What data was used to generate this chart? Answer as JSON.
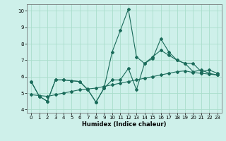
{
  "xlabel": "Humidex (Indice chaleur)",
  "bg_color": "#cef0ea",
  "grid_color": "#aaddcc",
  "line_color": "#1a6b5a",
  "xlim": [
    -0.5,
    23.5
  ],
  "ylim": [
    3.8,
    10.4
  ],
  "yticks": [
    4,
    5,
    6,
    7,
    8,
    9,
    10
  ],
  "xticks": [
    0,
    1,
    2,
    3,
    4,
    5,
    6,
    7,
    8,
    9,
    10,
    11,
    12,
    13,
    14,
    15,
    16,
    17,
    18,
    19,
    20,
    21,
    22,
    23
  ],
  "line1_x": [
    0,
    1,
    2,
    3,
    4,
    5,
    6,
    7,
    8,
    9,
    10,
    11,
    12,
    13,
    14,
    15,
    16,
    17,
    18,
    19,
    20,
    21,
    22,
    23
  ],
  "line1_y": [
    5.7,
    4.8,
    4.5,
    5.8,
    5.8,
    5.75,
    5.7,
    5.2,
    4.45,
    5.3,
    5.8,
    5.8,
    6.5,
    5.2,
    6.8,
    7.2,
    7.6,
    7.3,
    7.0,
    6.8,
    6.3,
    6.4,
    6.2,
    6.1
  ],
  "line2_x": [
    0,
    1,
    2,
    3,
    4,
    5,
    6,
    7,
    8,
    9,
    10,
    11,
    12,
    13,
    14,
    15,
    16,
    17,
    18,
    19,
    20,
    21,
    22,
    23
  ],
  "line2_y": [
    5.7,
    4.8,
    4.5,
    5.8,
    5.8,
    5.75,
    5.7,
    5.2,
    4.45,
    5.3,
    7.5,
    8.8,
    10.1,
    7.2,
    6.8,
    7.1,
    8.3,
    7.5,
    7.0,
    6.8,
    6.8,
    6.3,
    6.4,
    6.2
  ],
  "line3_x": [
    0,
    1,
    2,
    3,
    4,
    5,
    6,
    7,
    8,
    9,
    10,
    11,
    12,
    13,
    14,
    15,
    16,
    17,
    18,
    19,
    20,
    21,
    22,
    23
  ],
  "line3_y": [
    4.9,
    4.85,
    4.8,
    4.9,
    5.0,
    5.1,
    5.2,
    5.25,
    5.3,
    5.4,
    5.5,
    5.6,
    5.7,
    5.8,
    5.9,
    6.0,
    6.1,
    6.2,
    6.3,
    6.35,
    6.25,
    6.2,
    6.15,
    6.1
  ]
}
